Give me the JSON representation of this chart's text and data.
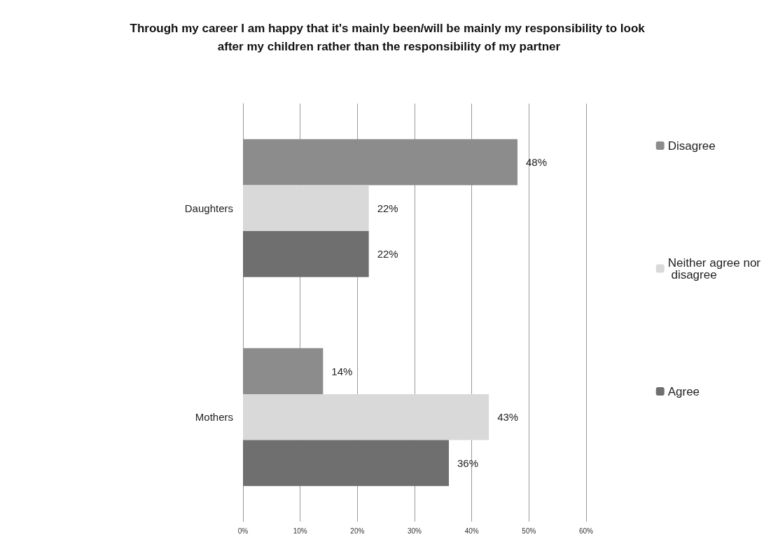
{
  "chart_data": {
    "type": "bar",
    "orientation": "horizontal",
    "title": "Through my career I am happy that it's mainly been/will be mainly my responsibility to look after my children rather than the responsibility of my partner",
    "categories": [
      "Daughters",
      "Mothers"
    ],
    "series": [
      {
        "name": "Disagree",
        "color": "#8c8c8c",
        "values": [
          48,
          14
        ],
        "value_labels": [
          "48%",
          "14%"
        ]
      },
      {
        "name": "Neither agree nor disagree",
        "color": "#d9d9d9",
        "values": [
          22,
          43
        ],
        "value_labels": [
          "22%",
          "43%"
        ]
      },
      {
        "name": "Agree",
        "color": "#6f6f6f",
        "values": [
          22,
          36
        ],
        "value_labels": [
          "22%",
          "36%"
        ]
      }
    ],
    "xlim": [
      0,
      60
    ],
    "xticks": [
      {
        "value": 0,
        "label": "0%"
      },
      {
        "value": 10,
        "label": "10%"
      },
      {
        "value": 20,
        "label": "20%"
      },
      {
        "value": 30,
        "label": "30%"
      },
      {
        "value": 40,
        "label": "40%"
      },
      {
        "value": 50,
        "label": "50%"
      },
      {
        "value": 60,
        "label": "60%"
      }
    ],
    "grid": "x",
    "legend": "right"
  }
}
